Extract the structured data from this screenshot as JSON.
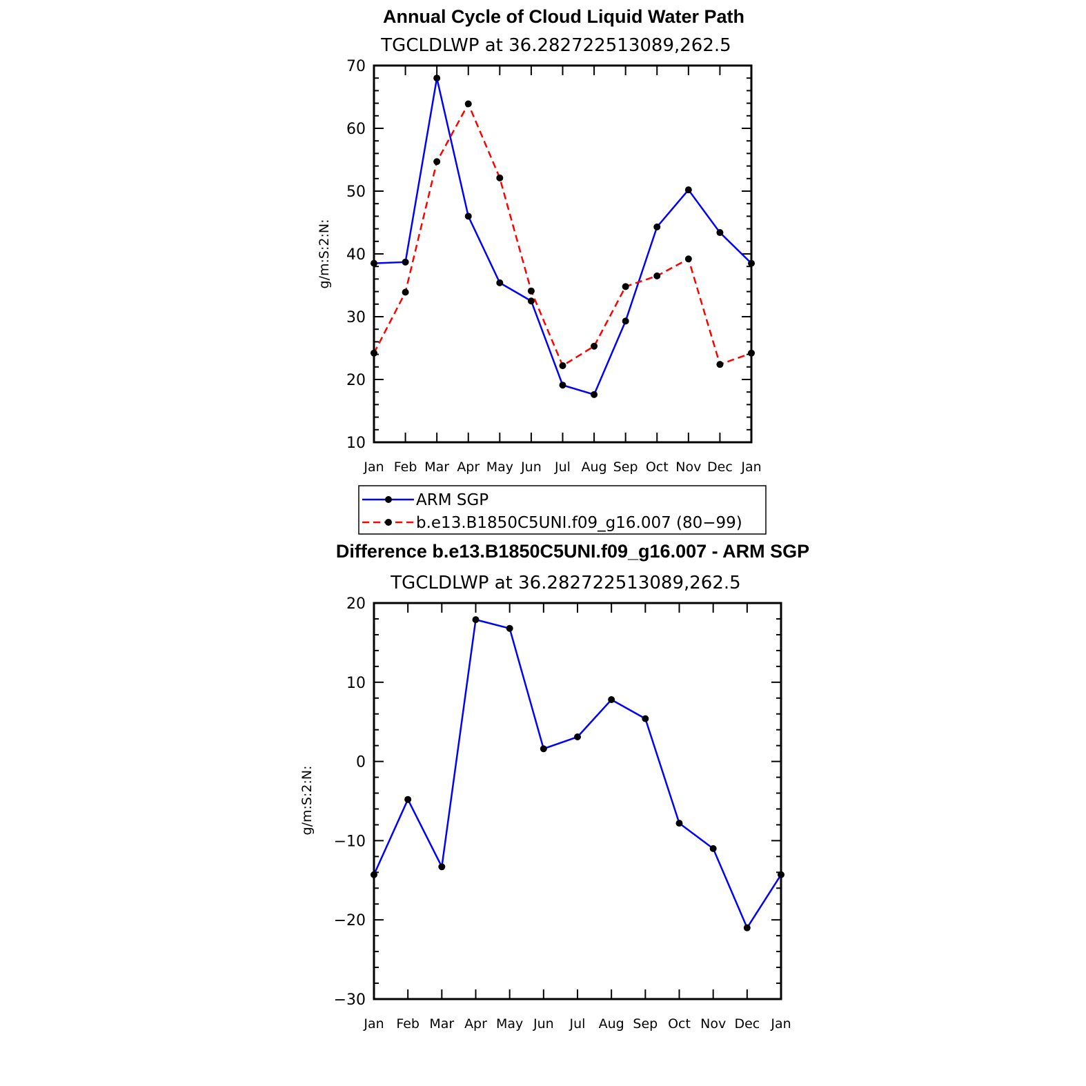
{
  "chart_data": [
    {
      "type": "line",
      "title": "Annual Cycle of Cloud Liquid Water Path",
      "subtitle": "TGCLDLWP  at  36.282722513089,262.5",
      "ylabel": "g/m:S:2:N:",
      "xlabel": "",
      "ylim": [
        10,
        70
      ],
      "yticks": [
        10,
        20,
        30,
        40,
        50,
        60,
        70
      ],
      "categories": [
        "Jan",
        "Feb",
        "Mar",
        "Apr",
        "May",
        "Jun",
        "Jul",
        "Aug",
        "Sep",
        "Oct",
        "Nov",
        "Dec",
        "Jan"
      ],
      "grid": false,
      "legend_position": "below",
      "series": [
        {
          "name": "ARM  SGP",
          "color": "#0000ff",
          "dash": "solid",
          "values": [
            38.5,
            38.7,
            68.0,
            46.0,
            35.4,
            32.5,
            19.1,
            17.6,
            29.3,
            44.3,
            50.2,
            43.4,
            38.5
          ]
        },
        {
          "name": "b.e13.B1850C5UNI.f09_g16.007  (80−99)",
          "color": "#ff0000",
          "dash": "dashed",
          "values": [
            24.2,
            33.9,
            54.7,
            63.9,
            52.1,
            34.1,
            22.2,
            25.3,
            34.8,
            36.5,
            39.2,
            22.4,
            24.2
          ]
        }
      ]
    },
    {
      "type": "line",
      "title": "Difference b.e13.B1850C5UNI.f09_g16.007 - ARM SGP",
      "subtitle": "TGCLDLWP  at  36.282722513089,262.5",
      "ylabel": "g/m:S:2:N:",
      "xlabel": "",
      "ylim": [
        -30,
        20
      ],
      "yticks": [
        -30,
        -20,
        -10,
        0,
        10,
        20
      ],
      "categories": [
        "Jan",
        "Feb",
        "Mar",
        "Apr",
        "May",
        "Jun",
        "Jul",
        "Aug",
        "Sep",
        "Oct",
        "Nov",
        "Dec",
        "Jan"
      ],
      "grid": false,
      "series": [
        {
          "color": "#0000ff",
          "dash": "solid",
          "values": [
            -14.3,
            -4.8,
            -13.3,
            17.9,
            16.8,
            1.6,
            3.1,
            7.8,
            5.4,
            -7.8,
            -11.0,
            -21.0,
            -14.3
          ]
        }
      ]
    }
  ]
}
